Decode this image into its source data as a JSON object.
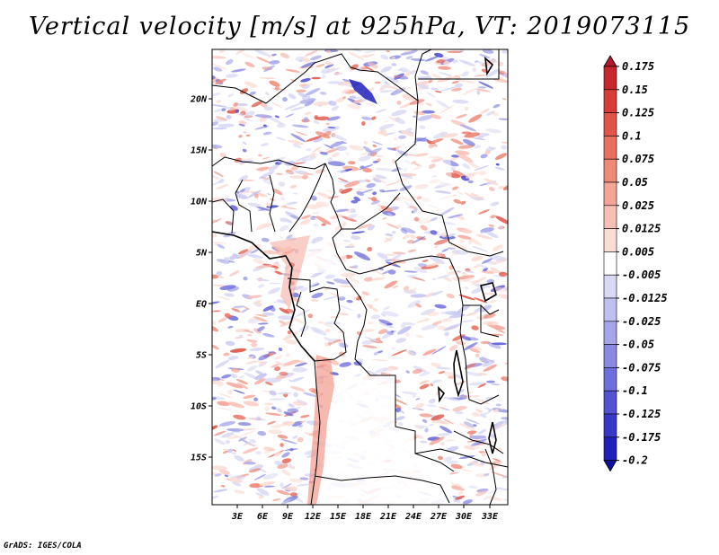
{
  "title": "Vertical velocity [m/s] at 925hPa, VT: 2019073115",
  "credit": "GrADS: IGES/COLA",
  "lat_labels": [
    "20N",
    "15N",
    "10N",
    "5N",
    "EQ",
    "5S",
    "10S",
    "15S"
  ],
  "lon_labels": [
    "3E",
    "6E",
    "9E",
    "12E",
    "15E",
    "18E",
    "21E",
    "24E",
    "27E",
    "30E",
    "33E"
  ],
  "colorbar": {
    "labels": [
      "0.175",
      "0.15",
      "0.125",
      "0.1",
      "0.075",
      "0.05",
      "0.025",
      "0.0125",
      "0.005",
      "-0.005",
      "-0.0125",
      "-0.025",
      "-0.05",
      "-0.075",
      "-0.1",
      "-0.125",
      "-0.175",
      "-0.2"
    ],
    "colors": [
      "#b2182b",
      "#c6262e",
      "#d73c38",
      "#e05548",
      "#e8705e",
      "#ef8a79",
      "#f4a597",
      "#f8c0b5",
      "#fbdcd4",
      "#ffffff",
      "#d9d9f5",
      "#c0c0f0",
      "#a5a5ea",
      "#8a8ae3",
      "#6e6edc",
      "#5252d2",
      "#3737c8",
      "#2020b8",
      "#10109e"
    ]
  },
  "chart_data": {
    "type": "heatmap",
    "title": "Vertical velocity [m/s] at 925hPa, VT: 2019073115",
    "x": [
      "3E",
      "6E",
      "9E",
      "12E",
      "15E",
      "18E",
      "21E",
      "24E",
      "27E",
      "30E",
      "33E"
    ],
    "y": [
      "20N",
      "15N",
      "10N",
      "5N",
      "EQ",
      "5S",
      "10S",
      "15S"
    ],
    "color_levels": [
      -0.2,
      -0.175,
      -0.125,
      -0.1,
      -0.075,
      -0.05,
      -0.025,
      -0.0125,
      -0.005,
      0.005,
      0.0125,
      0.025,
      0.05,
      0.075,
      0.1,
      0.125,
      0.15,
      0.175
    ]
  }
}
